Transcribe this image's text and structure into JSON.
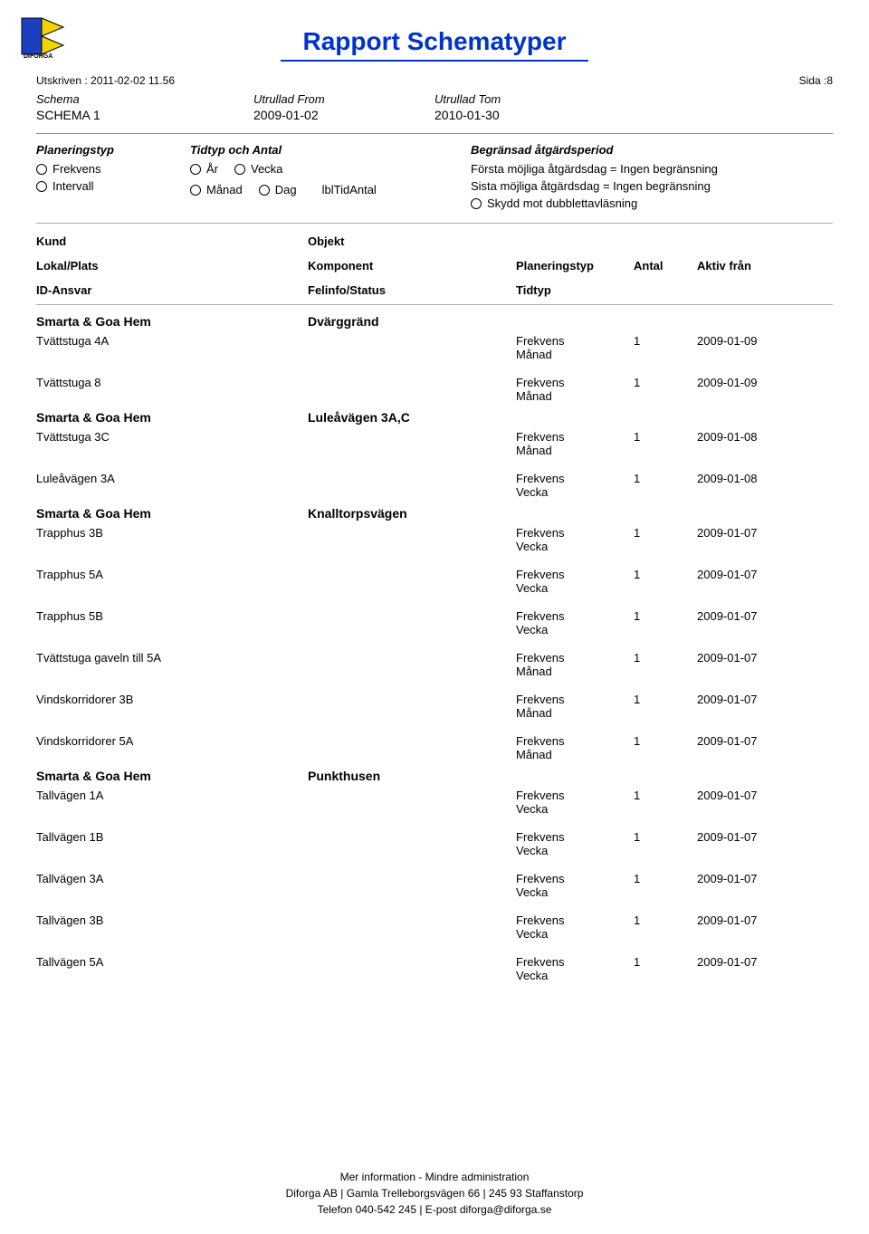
{
  "report": {
    "title": "Rapport Schematyper",
    "printed_label": "Utskriven :",
    "printed_value": "2011-02-02 11.56",
    "page_label": "Sida :",
    "page_number": "8"
  },
  "schema_header": {
    "schema_label": "Schema",
    "from_label": "Utrullad From",
    "tom_label": "Utrullad Tom",
    "schema_name": "SCHEMA 1",
    "from_value": "2009-01-02",
    "tom_value": "2010-01-30"
  },
  "plan_box": {
    "col1_title": "Planeringstyp",
    "opt_frekvens": "Frekvens",
    "opt_intervall": "Intervall",
    "col2_title": "Tidtyp och Antal",
    "opt_ar": "År",
    "opt_vecka": "Vecka",
    "opt_manad": "Månad",
    "opt_dag": "Dag",
    "lbltid": "lblTidAntal",
    "col3_title": "Begränsad åtgärdsperiod",
    "line1": "Första möjliga åtgärdsdag = Ingen begränsning",
    "line2": "Sista möjliga åtgärdsdag = Ingen begränsning",
    "line3": "Skydd mot dubblettavläsning"
  },
  "list_headers": {
    "kund": "Kund",
    "objekt": "Objekt",
    "lokal": "Lokal/Plats",
    "komponent": "Komponent",
    "planeringstyp": "Planeringstyp",
    "antal": "Antal",
    "aktiv": "Aktiv från",
    "idansvar": "ID-Ansvar",
    "felinfo": "Felinfo/Status",
    "tidtyp": "Tidtyp"
  },
  "groups": [
    {
      "kund": "Smarta & Goa Hem",
      "objekt": "Dvärggränd",
      "items": [
        {
          "lokal": "Tvättstuga 4A",
          "plan": "Frekvens",
          "antal": "1",
          "aktiv": "2009-01-09",
          "tidtyp": "Månad"
        },
        {
          "lokal": "Tvättstuga 8",
          "plan": "Frekvens",
          "antal": "1",
          "aktiv": "2009-01-09",
          "tidtyp": "Månad"
        }
      ]
    },
    {
      "kund": "Smarta & Goa Hem",
      "objekt": "Luleåvägen 3A,C",
      "items": [
        {
          "lokal": "Tvättstuga 3C",
          "plan": "Frekvens",
          "antal": "1",
          "aktiv": "2009-01-08",
          "tidtyp": "Månad"
        },
        {
          "lokal": "Luleåvägen 3A",
          "plan": "Frekvens",
          "antal": "1",
          "aktiv": "2009-01-08",
          "tidtyp": "Vecka"
        }
      ]
    },
    {
      "kund": "Smarta & Goa Hem",
      "objekt": "Knalltorpsvägen",
      "items": [
        {
          "lokal": "Trapphus 3B",
          "plan": "Frekvens",
          "antal": "1",
          "aktiv": "2009-01-07",
          "tidtyp": "Vecka"
        },
        {
          "lokal": "Trapphus 5A",
          "plan": "Frekvens",
          "antal": "1",
          "aktiv": "2009-01-07",
          "tidtyp": "Vecka"
        },
        {
          "lokal": "Trapphus 5B",
          "plan": "Frekvens",
          "antal": "1",
          "aktiv": "2009-01-07",
          "tidtyp": "Vecka"
        },
        {
          "lokal": "Tvättstuga gaveln till 5A",
          "plan": "Frekvens",
          "antal": "1",
          "aktiv": "2009-01-07",
          "tidtyp": "Månad"
        },
        {
          "lokal": "Vindskorridorer 3B",
          "plan": "Frekvens",
          "antal": "1",
          "aktiv": "2009-01-07",
          "tidtyp": "Månad"
        },
        {
          "lokal": "Vindskorridorer 5A",
          "plan": "Frekvens",
          "antal": "1",
          "aktiv": "2009-01-07",
          "tidtyp": "Månad"
        }
      ]
    },
    {
      "kund": "Smarta & Goa Hem",
      "objekt": "Punkthusen",
      "items": [
        {
          "lokal": "Tallvägen 1A",
          "plan": "Frekvens",
          "antal": "1",
          "aktiv": "2009-01-07",
          "tidtyp": "Vecka"
        },
        {
          "lokal": "Tallvägen 1B",
          "plan": "Frekvens",
          "antal": "1",
          "aktiv": "2009-01-07",
          "tidtyp": "Vecka"
        },
        {
          "lokal": "Tallvägen 3A",
          "plan": "Frekvens",
          "antal": "1",
          "aktiv": "2009-01-07",
          "tidtyp": "Vecka"
        },
        {
          "lokal": "Tallvägen 3B",
          "plan": "Frekvens",
          "antal": "1",
          "aktiv": "2009-01-07",
          "tidtyp": "Vecka"
        },
        {
          "lokal": "Tallvägen 5A",
          "plan": "Frekvens",
          "antal": "1",
          "aktiv": "2009-01-07",
          "tidtyp": "Vecka"
        }
      ]
    }
  ],
  "footer": {
    "line1": "Mer information - Mindre administration",
    "line2": "Diforga AB | Gamla Trelleborgsvägen 66 | 245 93 Staffanstorp",
    "line3": "Telefon 040-542 245 | E-post diforga@diforga.se"
  }
}
